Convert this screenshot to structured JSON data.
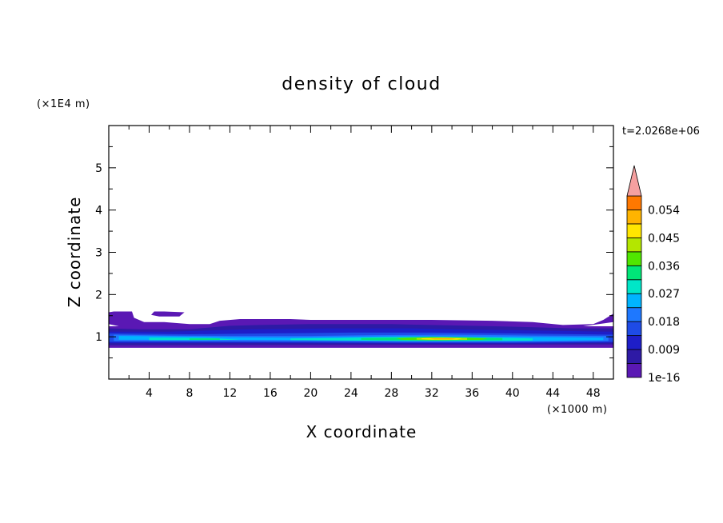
{
  "chart_data": {
    "type": "heatmap",
    "title": "density of cloud",
    "xlabel": "X coordinate",
    "ylabel": "Z coordinate",
    "x_unit": "(×1000 m)",
    "y_unit": "(×1E4 m)",
    "time_label": "t=2.0268e+06",
    "xlim": [
      0,
      50
    ],
    "ylim": [
      0,
      6
    ],
    "x_ticks": [
      4,
      8,
      12,
      16,
      20,
      24,
      28,
      32,
      36,
      40,
      44,
      48
    ],
    "y_ticks": [
      1,
      2,
      3,
      4,
      5
    ],
    "grid": false,
    "colorbar": {
      "levels": [
        1e-16,
        0.0045,
        0.009,
        0.0135,
        0.018,
        0.0225,
        0.027,
        0.0315,
        0.036,
        0.0405,
        0.045,
        0.0495,
        0.054,
        0.0585
      ],
      "colors": [
        "#5a18b4",
        "#2e1aa5",
        "#1e1ec8",
        "#1e4be6",
        "#1e78ff",
        "#00b4ff",
        "#00e6c8",
        "#00e678",
        "#50e600",
        "#b4e600",
        "#ffe600",
        "#ffb400",
        "#ff7800",
        "#ff2800",
        "#f5a0a0"
      ],
      "labels": [
        {
          "value": 1e-16,
          "text": "1e-16"
        },
        {
          "value": 0.009,
          "text": "0.009"
        },
        {
          "value": 0.018,
          "text": "0.018"
        },
        {
          "value": 0.027,
          "text": "0.027"
        },
        {
          "value": 0.036,
          "text": "0.036"
        },
        {
          "value": 0.045,
          "text": "0.045"
        },
        {
          "value": 0.054,
          "text": "0.054"
        }
      ],
      "extend": "max"
    },
    "fields": [
      {
        "level": 0,
        "polys": [
          [
            [
              0,
              1.58
            ],
            [
              0.5,
              1.6
            ],
            [
              2.3,
              1.6
            ],
            [
              2.5,
              1.45
            ],
            [
              3.5,
              1.35
            ],
            [
              5.5,
              1.35
            ],
            [
              8,
              1.3
            ],
            [
              10,
              1.3
            ],
            [
              11,
              1.38
            ],
            [
              13,
              1.42
            ],
            [
              18,
              1.42
            ],
            [
              20,
              1.4
            ],
            [
              26,
              1.4
            ],
            [
              32,
              1.4
            ],
            [
              38,
              1.38
            ],
            [
              42,
              1.35
            ],
            [
              45,
              1.28
            ],
            [
              48,
              1.3
            ],
            [
              49,
              1.4
            ],
            [
              50,
              1.55
            ],
            [
              50,
              1.35
            ],
            [
              47,
              1.25
            ],
            [
              44,
              1.22
            ],
            [
              40,
              1.22
            ],
            [
              30,
              1.22
            ],
            [
              20,
              1.22
            ],
            [
              12,
              1.22
            ],
            [
              5,
              1.22
            ],
            [
              1,
              1.25
            ],
            [
              0,
              1.3
            ]
          ],
          [
            [
              4.5,
              1.6
            ],
            [
              5.5,
              1.6
            ],
            [
              7.5,
              1.58
            ],
            [
              7,
              1.48
            ],
            [
              5,
              1.48
            ],
            [
              4.2,
              1.52
            ]
          ],
          [
            [
              0,
              1.25
            ],
            [
              50,
              1.25
            ],
            [
              50,
              0.74
            ],
            [
              0,
              0.74
            ]
          ]
        ]
      },
      {
        "level": 1,
        "polys": [
          [
            [
              0,
              1.2
            ],
            [
              3,
              1.18
            ],
            [
              8,
              1.18
            ],
            [
              12,
              1.26
            ],
            [
              15,
              1.28
            ],
            [
              20,
              1.3
            ],
            [
              28,
              1.3
            ],
            [
              34,
              1.27
            ],
            [
              40,
              1.24
            ],
            [
              46,
              1.2
            ],
            [
              50,
              1.2
            ],
            [
              50,
              0.82
            ],
            [
              0,
              0.8
            ]
          ]
        ]
      },
      {
        "level": 2,
        "polys": [
          [
            [
              0,
              1.12
            ],
            [
              6,
              1.12
            ],
            [
              14,
              1.18
            ],
            [
              22,
              1.2
            ],
            [
              30,
              1.2
            ],
            [
              36,
              1.17
            ],
            [
              42,
              1.15
            ],
            [
              50,
              1.12
            ],
            [
              50,
              0.86
            ],
            [
              42,
              0.84
            ],
            [
              30,
              0.84
            ],
            [
              15,
              0.85
            ],
            [
              0,
              0.85
            ]
          ]
        ]
      },
      {
        "level": 3,
        "polys": [
          [
            [
              0,
              1.08
            ],
            [
              8,
              1.06
            ],
            [
              16,
              1.08
            ],
            [
              24,
              1.1
            ],
            [
              32,
              1.1
            ],
            [
              40,
              1.08
            ],
            [
              50,
              1.05
            ],
            [
              50,
              0.88
            ],
            [
              40,
              0.86
            ],
            [
              28,
              0.86
            ],
            [
              16,
              0.87
            ],
            [
              0,
              0.88
            ]
          ]
        ]
      },
      {
        "level": 4,
        "polys": [
          [
            [
              0.5,
              1.05
            ],
            [
              6,
              1.03
            ],
            [
              12,
              1.02
            ],
            [
              20,
              1.02
            ],
            [
              26,
              1.04
            ],
            [
              34,
              1.05
            ],
            [
              42,
              1.03
            ],
            [
              49.5,
              1.02
            ],
            [
              49.5,
              0.9
            ],
            [
              40,
              0.88
            ],
            [
              30,
              0.88
            ],
            [
              20,
              0.9
            ],
            [
              10,
              0.9
            ],
            [
              0.5,
              0.9
            ]
          ]
        ]
      },
      {
        "level": 5,
        "polys": [
          [
            [
              1,
              1.02
            ],
            [
              6,
              1.01
            ],
            [
              11,
              0.99
            ],
            [
              18,
              0.98
            ],
            [
              24,
              1.0
            ],
            [
              30,
              1.01
            ],
            [
              38,
              1.0
            ],
            [
              45,
              0.99
            ],
            [
              49,
              0.98
            ],
            [
              49,
              0.92
            ],
            [
              42,
              0.9
            ],
            [
              34,
              0.9
            ],
            [
              26,
              0.91
            ],
            [
              18,
              0.92
            ],
            [
              10,
              0.93
            ],
            [
              1,
              0.93
            ]
          ]
        ]
      },
      {
        "level": 6,
        "polys": [
          [
            [
              4,
              0.98
            ],
            [
              10,
              0.97
            ],
            [
              13,
              0.93
            ],
            [
              9,
              0.92
            ],
            [
              4,
              0.92
            ]
          ],
          [
            [
              18,
              0.96
            ],
            [
              23,
              0.97
            ],
            [
              27,
              0.99
            ],
            [
              33,
              1.0
            ],
            [
              38,
              0.98
            ],
            [
              42,
              0.96
            ],
            [
              42,
              0.91
            ],
            [
              36,
              0.9
            ],
            [
              30,
              0.9
            ],
            [
              24,
              0.91
            ],
            [
              18,
              0.92
            ]
          ]
        ]
      },
      {
        "level": 7,
        "polys": [
          [
            [
              25,
              0.97
            ],
            [
              29,
              0.98
            ],
            [
              32,
              1.0
            ],
            [
              35,
              0.99
            ],
            [
              39,
              0.97
            ],
            [
              39,
              0.92
            ],
            [
              33,
              0.91
            ],
            [
              27,
              0.92
            ],
            [
              25,
              0.93
            ]
          ],
          [
            [
              8,
              0.96
            ],
            [
              11,
              0.96
            ],
            [
              11,
              0.93
            ],
            [
              8,
              0.93
            ]
          ]
        ]
      },
      {
        "level": 8,
        "polys": [
          [
            [
              28.5,
              0.97
            ],
            [
              32,
              0.99
            ],
            [
              35,
              0.98
            ],
            [
              37.5,
              0.96
            ],
            [
              37,
              0.93
            ],
            [
              32,
              0.92
            ],
            [
              29,
              0.93
            ]
          ]
        ]
      },
      {
        "level": 9,
        "polys": [
          [
            [
              30.5,
              0.97
            ],
            [
              33,
              0.98
            ],
            [
              35.5,
              0.97
            ],
            [
              35.5,
              0.93
            ],
            [
              33,
              0.925
            ],
            [
              30.5,
              0.935
            ]
          ]
        ]
      },
      {
        "level": 10,
        "polys": [
          [
            [
              31,
              0.965
            ],
            [
              33.5,
              0.975
            ],
            [
              35,
              0.96
            ],
            [
              34.5,
              0.935
            ],
            [
              32,
              0.935
            ],
            [
              31,
              0.945
            ]
          ]
        ]
      },
      {
        "level": 11,
        "polys": [
          [
            [
              31.8,
              0.96
            ],
            [
              33.5,
              0.968
            ],
            [
              34.4,
              0.955
            ],
            [
              34,
              0.94
            ],
            [
              32.3,
              0.942
            ]
          ]
        ]
      }
    ]
  }
}
